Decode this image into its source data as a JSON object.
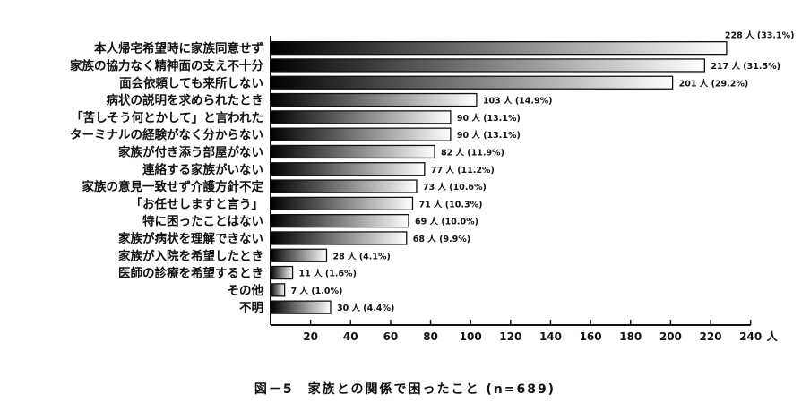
{
  "chart_data": {
    "type": "bar",
    "orientation": "horizontal",
    "title": "図－5　家族との関係で困ったこと (n=689)",
    "x_unit": "人",
    "xlim": [
      0,
      240
    ],
    "x_ticks": [
      "20",
      "40",
      "60",
      "80",
      "100",
      "120",
      "140",
      "160",
      "180",
      "200",
      "220",
      "240"
    ],
    "grid": false,
    "categories": [
      "本人帰宅希望時に家族同意せず",
      "家族の協力なく精神面の支え不十分",
      "面会依頼しても来所しない",
      "病状の説明を求められたとき",
      "「苦しそう何とかして」と言われた",
      "ターミナルの経験がなく分からない",
      "家族が付き添う部屋がない",
      "連絡する家族がいない",
      "家族の意見一致せず介護方針不定",
      "「お任せしますと言う」",
      "特に困ったことはない",
      "家族が病状を理解できない",
      "家族が入院を希望したとき",
      "医師の診療を希望するとき",
      "その他",
      "不明"
    ],
    "values": [
      228,
      217,
      201,
      103,
      90,
      90,
      82,
      77,
      73,
      71,
      69,
      68,
      28,
      11,
      7,
      30
    ],
    "data_labels": [
      "228 人 (33.1%)",
      "217 人 (31.5%)",
      "201 人 (29.2%)",
      "103 人 (14.9%)",
      "90 人 (13.1%)",
      "90 人 (13.1%)",
      "82 人 (11.9%)",
      "77 人 (11.2%)",
      "73 人 (10.6%)",
      "71 人 (10.3%)",
      "69 人 (10.0%)",
      "68 人 (9.9%)",
      "28 人 (4.1%)",
      "11 人 (1.6%)",
      "7 人 (1.0%)",
      "30 人 (4.4%)"
    ],
    "colors": {
      "bar_start": "#000000",
      "bar_end": "#ffffff",
      "axis": "#111111"
    }
  }
}
